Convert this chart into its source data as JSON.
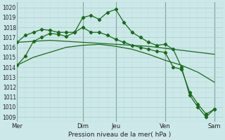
{
  "title": "Pression niveau de la mer( hPa )",
  "bg_color": "#cce8e8",
  "plot_bg": "#cce8e8",
  "grid_color": "#aacccc",
  "grid_minor_color": "#bbdddd",
  "line_color": "#1a6b1a",
  "ylim": [
    1008.5,
    1020.5
  ],
  "xlim": [
    0,
    25
  ],
  "yticks": [
    1009,
    1010,
    1011,
    1012,
    1013,
    1014,
    1015,
    1016,
    1017,
    1018,
    1019,
    1020
  ],
  "day_labels": [
    "Mer",
    "Dim",
    "Jeu",
    "Ven",
    "Sam"
  ],
  "day_positions": [
    0,
    8,
    12,
    18,
    24
  ],
  "series": [
    {
      "x": [
        0,
        1,
        2,
        3,
        4,
        5,
        6,
        7,
        8,
        9,
        10,
        11,
        12,
        13,
        14,
        15,
        16,
        17,
        18,
        19,
        20,
        21,
        22,
        23,
        24
      ],
      "y": [
        1014.2,
        1015.1,
        1016.6,
        1017.0,
        1017.4,
        1017.3,
        1017.1,
        1017.5,
        1019.0,
        1019.2,
        1018.8,
        1019.5,
        1019.8,
        1018.5,
        1017.5,
        1017.0,
        1016.5,
        1016.2,
        1016.3,
        1015.8,
        1014.0,
        1011.2,
        1010.0,
        1009.0,
        1009.8
      ],
      "marker": true
    },
    {
      "x": [
        0,
        1,
        2,
        3,
        4,
        5,
        6,
        7,
        8,
        9,
        10,
        11,
        12,
        13,
        14,
        15,
        16,
        17,
        18,
        19,
        20,
        21,
        22,
        23,
        24
      ],
      "y": [
        1016.5,
        1017.2,
        1017.5,
        1017.8,
        1017.7,
        1017.5,
        1017.5,
        1017.5,
        1018.0,
        1017.5,
        1017.5,
        1017.2,
        1016.8,
        1016.5,
        1016.2,
        1016.0,
        1015.8,
        1015.6,
        1015.5,
        1014.0,
        1013.8,
        1011.5,
        1010.3,
        1009.3,
        1009.8
      ],
      "marker": true
    },
    {
      "x": [
        0,
        2,
        4,
        6,
        8,
        10,
        12,
        14,
        16,
        18,
        20,
        22,
        24
      ],
      "y": [
        1016.5,
        1016.6,
        1016.7,
        1016.6,
        1016.5,
        1016.4,
        1016.3,
        1016.2,
        1016.1,
        1015.9,
        1015.7,
        1015.5,
        1015.3
      ],
      "marker": false
    },
    {
      "x": [
        0,
        2,
        4,
        6,
        8,
        10,
        12,
        14,
        16,
        18,
        20,
        22,
        24
      ],
      "y": [
        1014.2,
        1015.0,
        1015.5,
        1016.0,
        1016.2,
        1016.3,
        1016.1,
        1015.8,
        1015.3,
        1014.7,
        1014.2,
        1013.5,
        1012.5
      ],
      "marker": false
    }
  ]
}
